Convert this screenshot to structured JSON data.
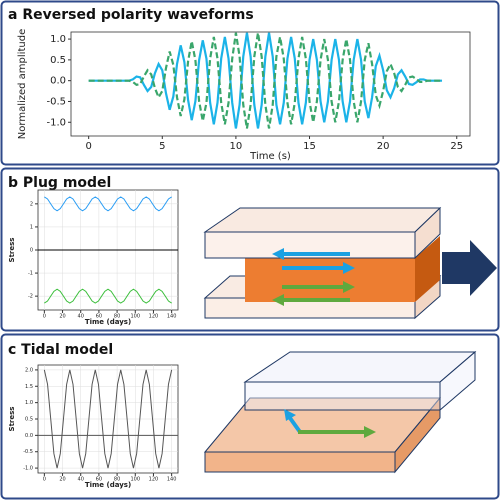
{
  "chart_data": [
    {
      "type": "line",
      "title": "a Reversed polarity waveforms",
      "xlabel": "Time (s)",
      "ylabel": "Normalized amplitude",
      "x": [
        0,
        0.25,
        0.5,
        0.75,
        1,
        1.25,
        1.5,
        1.75,
        2,
        2.25,
        2.5,
        2.75,
        3,
        3.25,
        3.5,
        3.75,
        4,
        4.25,
        4.5,
        4.75,
        5,
        5.25,
        5.5,
        5.75,
        6,
        6.25,
        6.5,
        6.75,
        7,
        7.25,
        7.5,
        7.75,
        8,
        8.25,
        8.5,
        8.75,
        9,
        9.25,
        9.5,
        9.75,
        10,
        10.25,
        10.5,
        10.75,
        11,
        11.25,
        11.5,
        11.75,
        12,
        12.25,
        12.5,
        12.75,
        13,
        13.25,
        13.5,
        13.75,
        14,
        14.25,
        14.5,
        14.75,
        15,
        15.25,
        15.5,
        15.75,
        16,
        16.25,
        16.5,
        16.75,
        17,
        17.25,
        17.5,
        17.75,
        18,
        18.25,
        18.5,
        18.75,
        19,
        19.25,
        19.5,
        19.75,
        20,
        20.25,
        20.5,
        20.75,
        21,
        21.25,
        21.5,
        21.75,
        22,
        22.25,
        22.5,
        22.75,
        23,
        23.25,
        23.5,
        23.75,
        24
      ],
      "series": [
        {
          "color": "#1bb3e8",
          "linestyle": "solid",
          "values": [
            0,
            0,
            0,
            0,
            0,
            0,
            0,
            0,
            0,
            0,
            0,
            0,
            0.03,
            0.1,
            0.08,
            -0.1,
            -0.25,
            -0.15,
            0.18,
            0.4,
            0.25,
            -0.3,
            -0.7,
            -0.38,
            0.4,
            0.85,
            0.45,
            -0.46,
            -0.95,
            -0.49,
            0.49,
            0.97,
            0.53,
            -0.53,
            -1.05,
            -0.53,
            0.53,
            1.05,
            0.53,
            -0.53,
            -1.15,
            -0.58,
            0.58,
            1.15,
            0.58,
            -0.58,
            -1.15,
            -0.58,
            0.58,
            1.15,
            0.58,
            -0.58,
            -1.05,
            -0.53,
            0.53,
            1.05,
            0.53,
            -0.53,
            -1.05,
            -0.53,
            0.5,
            1.0,
            0.5,
            -0.5,
            -1.0,
            -0.5,
            0.5,
            1.0,
            0.5,
            -0.5,
            -1.0,
            -0.5,
            0.5,
            1.0,
            0.5,
            -0.5,
            -0.9,
            -0.4,
            0.35,
            0.6,
            0.25,
            -0.23,
            -0.4,
            -0.18,
            0.15,
            0.25,
            0.1,
            -0.08,
            -0.1,
            -0.04,
            0.03,
            0.03,
            0,
            0,
            0,
            0,
            0
          ]
        },
        {
          "color": "#3aa66b",
          "linestyle": "dashed",
          "values": [
            0,
            0,
            0,
            0,
            0,
            0,
            0,
            0,
            0,
            0,
            0,
            0,
            -0.03,
            -0.1,
            -0.08,
            0.1,
            0.25,
            0.15,
            -0.18,
            -0.4,
            -0.25,
            0.3,
            0.7,
            0.38,
            -0.4,
            -0.85,
            -0.45,
            0.46,
            0.95,
            0.49,
            -0.49,
            -0.97,
            -0.53,
            0.53,
            1.05,
            0.53,
            -0.53,
            -1.05,
            -0.53,
            0.53,
            1.15,
            0.58,
            -0.58,
            -1.15,
            -0.58,
            0.58,
            1.15,
            0.58,
            -0.58,
            -1.15,
            -0.58,
            0.58,
            1.05,
            0.53,
            -0.53,
            -1.05,
            -0.53,
            0.53,
            1.05,
            0.53,
            -0.5,
            -1.0,
            -0.5,
            0.5,
            1.0,
            0.5,
            -0.5,
            -1.0,
            -0.5,
            0.5,
            1.0,
            0.5,
            -0.5,
            -1.0,
            -0.5,
            0.5,
            0.9,
            0.4,
            -0.35,
            -0.6,
            -0.25,
            0.23,
            0.4,
            0.18,
            -0.15,
            -0.25,
            -0.1,
            0.08,
            0.1,
            0.04,
            -0.03,
            -0.03,
            0,
            0,
            0,
            0,
            0
          ]
        }
      ],
      "xlim": [
        -1.2,
        25.9
      ],
      "xticks": [
        0,
        5,
        10,
        15,
        20,
        25
      ],
      "ylim": [
        -1.33,
        1.17
      ],
      "yticks": [
        {
          "value": -1.0,
          "label": "-1.0"
        },
        {
          "value": -0.5,
          "label": "-0.5"
        },
        {
          "value": 0,
          "label": "0.0"
        },
        {
          "value": 0.5,
          "label": "0.5"
        },
        {
          "value": 1.0,
          "label": "1.0"
        }
      ],
      "grid": false
    },
    {
      "type": "line",
      "title": "b Plug model",
      "xlabel": "Time (days)",
      "ylabel": "Stress",
      "x": [
        0,
        3.5,
        7,
        10.5,
        14,
        17.5,
        21,
        24.5,
        28,
        31.5,
        35,
        38.5,
        42,
        45.5,
        49,
        52.5,
        56,
        59.5,
        63,
        66.5,
        70,
        73.5,
        77,
        80.5,
        84,
        87.5,
        91,
        94.5,
        98,
        101.5,
        105,
        108.5,
        112,
        115.5,
        119,
        122.5,
        126,
        129.5,
        133,
        136.5,
        140
      ],
      "series": [
        {
          "color": "#2a9df4",
          "linestyle": "solid",
          "values": [
            2.3,
            2.21,
            2,
            1.79,
            1.7,
            1.79,
            2,
            2.21,
            2.3,
            2.21,
            2,
            1.79,
            1.7,
            1.79,
            2,
            2.21,
            2.3,
            2.21,
            2,
            1.79,
            1.7,
            1.79,
            2,
            2.21,
            2.3,
            2.21,
            2,
            1.79,
            1.7,
            1.79,
            2,
            2.21,
            2.3,
            2.21,
            2,
            1.79,
            1.7,
            1.79,
            2,
            2.21,
            2.3
          ]
        },
        {
          "color": "#3cbf3c",
          "linestyle": "solid",
          "values": [
            -2.3,
            -2.21,
            -2,
            -1.79,
            -1.7,
            -1.79,
            -2,
            -2.21,
            -2.3,
            -2.21,
            -2,
            -1.79,
            -1.7,
            -1.79,
            -2,
            -2.21,
            -2.3,
            -2.21,
            -2,
            -1.79,
            -1.7,
            -1.79,
            -2,
            -2.21,
            -2.3,
            -2.21,
            -2,
            -1.79,
            -1.7,
            -1.79,
            -2,
            -2.21,
            -2.3,
            -2.21,
            -2,
            -1.79,
            -1.7,
            -1.79,
            -2,
            -2.21,
            -2.3
          ]
        }
      ],
      "hline": 0,
      "hline_color": "#000000",
      "xlim": [
        -7,
        147
      ],
      "xticks": [
        0,
        20,
        40,
        60,
        80,
        100,
        120,
        140
      ],
      "ylim": [
        -2.6,
        2.6
      ],
      "yticks": [
        -2,
        -1,
        0,
        1,
        2
      ],
      "grid": true
    },
    {
      "type": "line",
      "title": "c Tidal model",
      "xlabel": "Time (days)",
      "ylabel": "Stress",
      "x": [
        0,
        3.5,
        7,
        10.5,
        14,
        17.5,
        21,
        24.5,
        28,
        31.5,
        35,
        38.5,
        42,
        45.5,
        49,
        52.5,
        56,
        59.5,
        63,
        66.5,
        70,
        73.5,
        77,
        80.5,
        84,
        87.5,
        91,
        94.5,
        98,
        101.5,
        105,
        108.5,
        112,
        115.5,
        119,
        122.5,
        126,
        129.5,
        133,
        136.5,
        140
      ],
      "series": [
        {
          "color": "#555555",
          "linestyle": "solid",
          "values": [
            2,
            1.56,
            0.5,
            -0.56,
            -1,
            -0.56,
            0.5,
            1.56,
            2,
            1.56,
            0.5,
            -0.56,
            -1,
            -0.56,
            0.5,
            1.56,
            2,
            1.56,
            0.5,
            -0.56,
            -1,
            -0.56,
            0.5,
            1.56,
            2,
            1.56,
            0.5,
            -0.56,
            -1,
            -0.56,
            0.5,
            1.56,
            2,
            1.56,
            0.5,
            -0.56,
            -1,
            -0.56,
            0.5,
            1.56,
            2
          ]
        }
      ],
      "hline": 0,
      "hline_color": "#555555",
      "xlim": [
        -7,
        147
      ],
      "xticks": [
        0,
        20,
        40,
        60,
        80,
        100,
        120,
        140
      ],
      "ylim": [
        -1.15,
        2.15
      ],
      "yticks": [
        {
          "value": -1.0,
          "label": "-1.0"
        },
        {
          "value": -0.5,
          "label": "-0.5"
        },
        {
          "value": 0,
          "label": "0.0"
        },
        {
          "value": 0.5,
          "label": "0.5"
        },
        {
          "value": 1.0,
          "label": "1.0"
        },
        {
          "value": 1.5,
          "label": "1.5"
        },
        {
          "value": 2.0,
          "label": "2.0"
        }
      ],
      "grid": true
    }
  ]
}
